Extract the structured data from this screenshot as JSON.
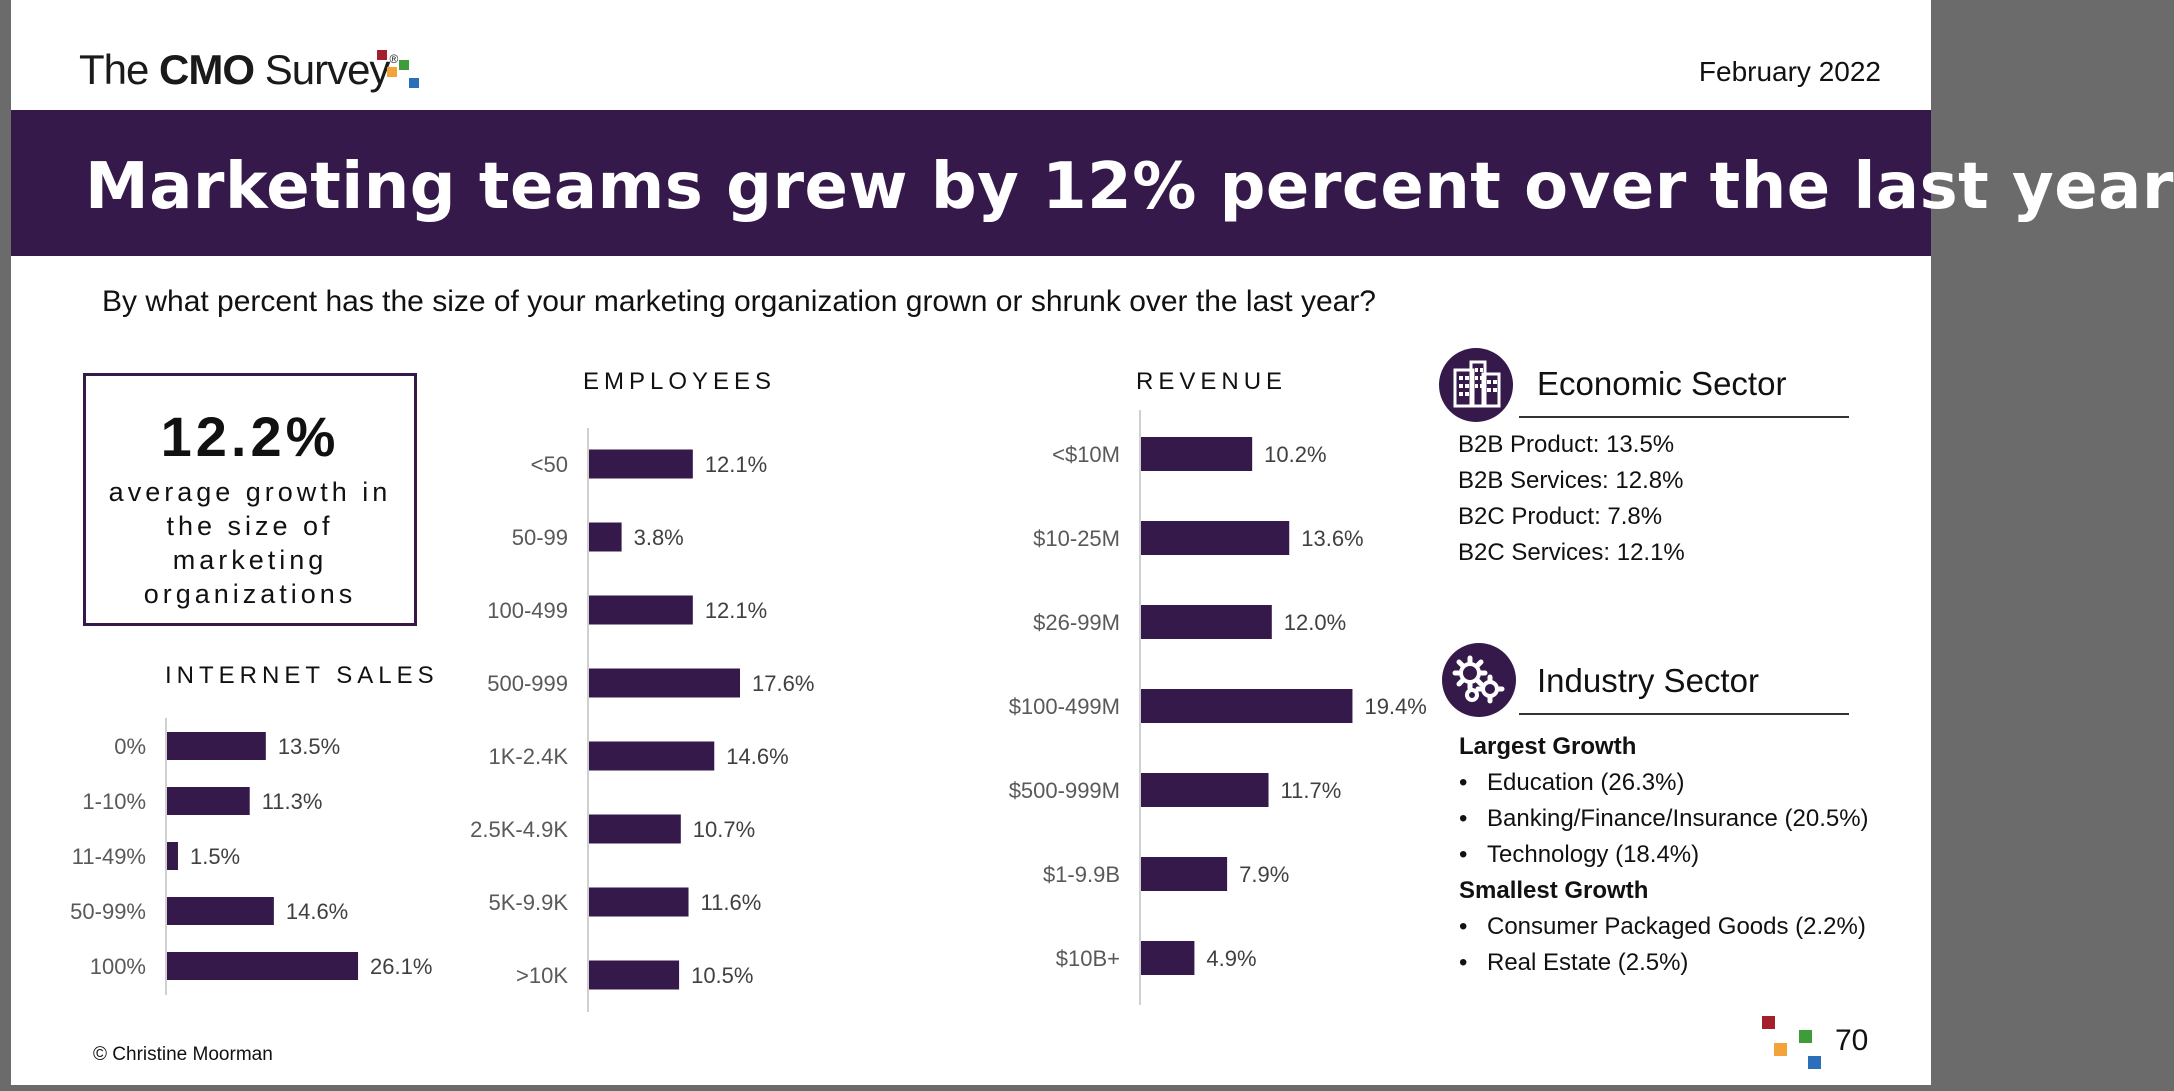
{
  "header": {
    "logo_text_pre": "The ",
    "logo_text_bold": "CMO",
    "logo_text_post": " Survey",
    "logo_reg": "®",
    "date": "February 2022"
  },
  "banner": {
    "title": "Marketing teams grew by 12% percent over the last year"
  },
  "question": "By what percent has the size of your marketing organization grown or shrunk over the last year?",
  "kpi": {
    "value": "12.2%",
    "label": "average growth in the size of marketing organizations"
  },
  "colors": {
    "purple": "#35194a",
    "red": "#a31f2c",
    "orange": "#f3a33a",
    "green": "#3e9c3b",
    "blue": "#2a6fb8"
  },
  "chart_data": [
    {
      "id": "internet-sales",
      "type": "bar",
      "orientation": "horizontal",
      "title": "INTERNET SALES",
      "categories": [
        "0%",
        "1-10%",
        "11-49%",
        "50-99%",
        "100%"
      ],
      "values": [
        13.5,
        11.3,
        1.5,
        14.6,
        26.1
      ],
      "labels": [
        "13.5%",
        "11.3%",
        "1.5%",
        "14.6%",
        "26.1%"
      ]
    },
    {
      "id": "employees",
      "type": "bar",
      "orientation": "horizontal",
      "title": "EMPLOYEES",
      "categories": [
        "<50",
        "50-99",
        "100-499",
        "500-999",
        "1K-2.4K",
        "2.5K-4.9K",
        "5K-9.9K",
        ">10K"
      ],
      "values": [
        12.1,
        3.8,
        12.1,
        17.6,
        14.6,
        10.7,
        11.6,
        10.5
      ],
      "labels": [
        "12.1%",
        "3.8%",
        "12.1%",
        "17.6%",
        "14.6%",
        "10.7%",
        "11.6%",
        "10.5%"
      ]
    },
    {
      "id": "revenue",
      "type": "bar",
      "orientation": "horizontal",
      "title": "REVENUE",
      "categories": [
        "<$10M",
        "$10-25M",
        "$26-99M",
        "$100-499M",
        "$500-999M",
        "$1-9.9B",
        "$10B+"
      ],
      "values": [
        10.2,
        13.6,
        12.0,
        19.4,
        11.7,
        7.9,
        4.9
      ],
      "labels": [
        "10.2%",
        "13.6%",
        "12.0%",
        "19.4%",
        "11.7%",
        "7.9%",
        "4.9%"
      ]
    }
  ],
  "economic_sector": {
    "title": "Economic Sector",
    "icon": "buildings-icon",
    "items": [
      "B2B Product: 13.5%",
      "B2B Services: 12.8%",
      "B2C Product: 7.8%",
      "B2C Services: 12.1%"
    ]
  },
  "industry_sector": {
    "title": "Industry Sector",
    "icon": "gears-icon",
    "largest_label": "Largest Growth",
    "largest": [
      "Education (26.3%)",
      "Banking/Finance/Insurance (20.5%)",
      "Technology (18.4%)"
    ],
    "smallest_label": "Smallest Growth",
    "smallest": [
      "Consumer Packaged Goods (2.2%)",
      "Real Estate (2.5%)"
    ]
  },
  "footer": {
    "copyright": "© Christine Moorman",
    "page_number": "70"
  }
}
